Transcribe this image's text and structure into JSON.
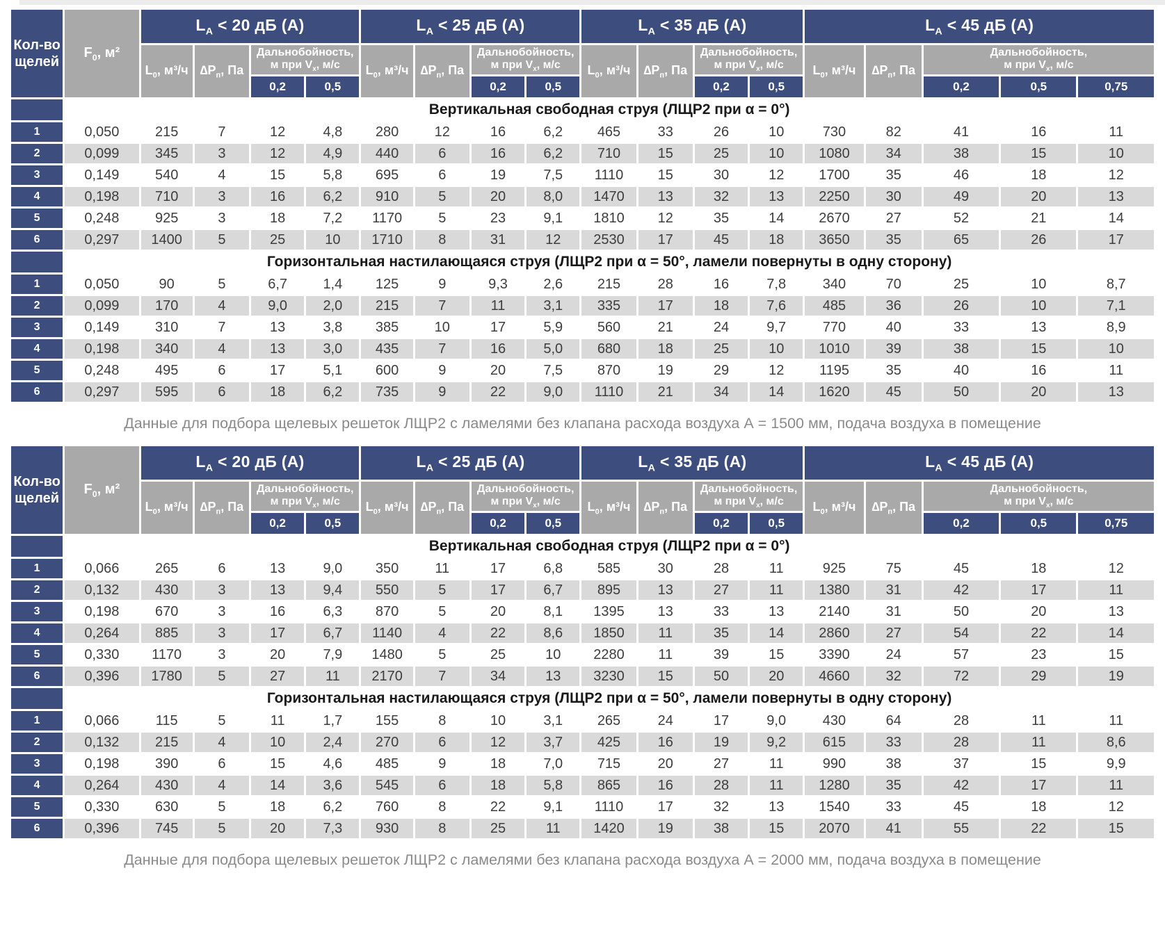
{
  "header": {
    "slots_label": "Кол-во щелей",
    "f0": {
      "pre": "F",
      "sub": "0",
      "post": ", м²"
    },
    "flow": {
      "pre": "L",
      "sub": "0",
      "post": ", м³/ч"
    },
    "pressure": {
      "pre": "∆P",
      "sub": "п",
      "post": ", Па"
    },
    "range_line1": "Дальнобойность,",
    "range_line2": {
      "pre": "м при V",
      "sub": "х",
      "post": ", м/с"
    },
    "groups": [
      {
        "title": {
          "pre": "L",
          "sub": "A",
          "post": " < 20 дБ (А)"
        },
        "velocities": [
          "0,2",
          "0,5"
        ]
      },
      {
        "title": {
          "pre": "L",
          "sub": "A",
          "post": " < 25 дБ (А)"
        },
        "velocities": [
          "0,2",
          "0,5"
        ]
      },
      {
        "title": {
          "pre": "L",
          "sub": "A",
          "post": " < 35 дБ (А)"
        },
        "velocities": [
          "0,2",
          "0,5"
        ]
      },
      {
        "title": {
          "pre": "L",
          "sub": "A",
          "post": " < 45 дБ (А)"
        },
        "velocities": [
          "0,2",
          "0,5",
          "0,75"
        ]
      }
    ]
  },
  "tables": [
    {
      "caption": "Данные для подбора щелевых решеток ЛЩР2 с ламелями без клапана расхода воздуха А = 1500 мм, подача воздуха в помещение",
      "sections": [
        {
          "title": "Вертикальная свободная струя (ЛЩР2 при α = 0°)",
          "rows": [
            {
              "n": "1",
              "f": "0,050",
              "values": [
                "215",
                "7",
                "12",
                "4,8",
                "280",
                "12",
                "16",
                "6,2",
                "465",
                "33",
                "26",
                "10",
                "730",
                "82",
                "41",
                "16",
                "11"
              ]
            },
            {
              "n": "2",
              "f": "0,099",
              "values": [
                "345",
                "3",
                "12",
                "4,9",
                "440",
                "6",
                "16",
                "6,2",
                "710",
                "15",
                "25",
                "10",
                "1080",
                "34",
                "38",
                "15",
                "10"
              ]
            },
            {
              "n": "3",
              "f": "0,149",
              "values": [
                "540",
                "4",
                "15",
                "5,8",
                "695",
                "6",
                "19",
                "7,5",
                "1110",
                "15",
                "30",
                "12",
                "1700",
                "35",
                "46",
                "18",
                "12"
              ]
            },
            {
              "n": "4",
              "f": "0,198",
              "values": [
                "710",
                "3",
                "16",
                "6,2",
                "910",
                "5",
                "20",
                "8,0",
                "1470",
                "13",
                "32",
                "13",
                "2250",
                "30",
                "49",
                "20",
                "13"
              ]
            },
            {
              "n": "5",
              "f": "0,248",
              "values": [
                "925",
                "3",
                "18",
                "7,2",
                "1170",
                "5",
                "23",
                "9,1",
                "1810",
                "12",
                "35",
                "14",
                "2670",
                "27",
                "52",
                "21",
                "14"
              ]
            },
            {
              "n": "6",
              "f": "0,297",
              "values": [
                "1400",
                "5",
                "25",
                "10",
                "1710",
                "8",
                "31",
                "12",
                "2530",
                "17",
                "45",
                "18",
                "3650",
                "35",
                "65",
                "26",
                "17"
              ]
            }
          ]
        },
        {
          "title": "Горизонтальная настилающаяся струя (ЛЩР2 при α = 50°, ламели повернуты в одну сторону)",
          "rows": [
            {
              "n": "1",
              "f": "0,050",
              "values": [
                "90",
                "5",
                "6,7",
                "1,4",
                "125",
                "9",
                "9,3",
                "2,6",
                "215",
                "28",
                "16",
                "7,8",
                "340",
                "70",
                "25",
                "10",
                "8,7"
              ]
            },
            {
              "n": "2",
              "f": "0,099",
              "values": [
                "170",
                "4",
                "9,0",
                "2,0",
                "215",
                "7",
                "11",
                "3,1",
                "335",
                "17",
                "18",
                "7,6",
                "485",
                "36",
                "26",
                "10",
                "7,1"
              ]
            },
            {
              "n": "3",
              "f": "0,149",
              "values": [
                "310",
                "7",
                "13",
                "3,8",
                "385",
                "10",
                "17",
                "5,9",
                "560",
                "21",
                "24",
                "9,7",
                "770",
                "40",
                "33",
                "13",
                "8,9"
              ]
            },
            {
              "n": "4",
              "f": "0,198",
              "values": [
                "340",
                "4",
                "13",
                "3,0",
                "435",
                "7",
                "16",
                "5,0",
                "680",
                "18",
                "25",
                "10",
                "1010",
                "39",
                "38",
                "15",
                "10"
              ]
            },
            {
              "n": "5",
              "f": "0,248",
              "values": [
                "495",
                "6",
                "17",
                "5,1",
                "600",
                "9",
                "20",
                "7,5",
                "870",
                "19",
                "29",
                "12",
                "1195",
                "35",
                "40",
                "16",
                "11"
              ]
            },
            {
              "n": "6",
              "f": "0,297",
              "values": [
                "595",
                "6",
                "18",
                "6,2",
                "735",
                "9",
                "22",
                "9,0",
                "1110",
                "21",
                "34",
                "14",
                "1620",
                "45",
                "50",
                "20",
                "13"
              ]
            }
          ]
        }
      ]
    },
    {
      "caption": "Данные для подбора щелевых решеток ЛЩР2 с ламелями без клапана расхода воздуха А = 2000 мм, подача воздуха в помещение",
      "sections": [
        {
          "title": "Вертикальная свободная струя (ЛЩР2 при α = 0°)",
          "rows": [
            {
              "n": "1",
              "f": "0,066",
              "values": [
                "265",
                "6",
                "13",
                "9,0",
                "350",
                "11",
                "17",
                "6,8",
                "585",
                "30",
                "28",
                "11",
                "925",
                "75",
                "45",
                "18",
                "12"
              ]
            },
            {
              "n": "2",
              "f": "0,132",
              "values": [
                "430",
                "3",
                "13",
                "9,4",
                "550",
                "5",
                "17",
                "6,7",
                "895",
                "13",
                "27",
                "11",
                "1380",
                "31",
                "42",
                "17",
                "11"
              ]
            },
            {
              "n": "3",
              "f": "0,198",
              "values": [
                "670",
                "3",
                "16",
                "6,3",
                "870",
                "5",
                "20",
                "8,1",
                "1395",
                "13",
                "33",
                "13",
                "2140",
                "31",
                "50",
                "20",
                "13"
              ]
            },
            {
              "n": "4",
              "f": "0,264",
              "values": [
                "885",
                "3",
                "17",
                "6,7",
                "1140",
                "4",
                "22",
                "8,6",
                "1850",
                "11",
                "35",
                "14",
                "2860",
                "27",
                "54",
                "22",
                "14"
              ]
            },
            {
              "n": "5",
              "f": "0,330",
              "values": [
                "1170",
                "3",
                "20",
                "7,9",
                "1480",
                "5",
                "25",
                "10",
                "2280",
                "11",
                "39",
                "15",
                "3390",
                "24",
                "57",
                "23",
                "15"
              ]
            },
            {
              "n": "6",
              "f": "0,396",
              "values": [
                "1780",
                "5",
                "27",
                "11",
                "2170",
                "7",
                "34",
                "13",
                "3230",
                "15",
                "50",
                "20",
                "4660",
                "32",
                "72",
                "29",
                "19"
              ]
            }
          ]
        },
        {
          "title": "Горизонтальная настилающаяся струя (ЛЩР2 при α = 50°, ламели повернуты в одну сторону)",
          "rows": [
            {
              "n": "1",
              "f": "0,066",
              "values": [
                "115",
                "5",
                "11",
                "1,7",
                "155",
                "8",
                "10",
                "3,1",
                "265",
                "24",
                "17",
                "9,0",
                "430",
                "64",
                "28",
                "11",
                "11"
              ]
            },
            {
              "n": "2",
              "f": "0,132",
              "values": [
                "215",
                "4",
                "10",
                "2,4",
                "270",
                "6",
                "12",
                "3,7",
                "425",
                "16",
                "19",
                "9,2",
                "615",
                "33",
                "28",
                "11",
                "8,6"
              ]
            },
            {
              "n": "3",
              "f": "0,198",
              "values": [
                "390",
                "6",
                "15",
                "4,6",
                "485",
                "9",
                "18",
                "7,0",
                "715",
                "20",
                "27",
                "11",
                "990",
                "38",
                "37",
                "15",
                "9,9"
              ]
            },
            {
              "n": "4",
              "f": "0,264",
              "values": [
                "430",
                "4",
                "14",
                "3,6",
                "545",
                "6",
                "18",
                "5,8",
                "865",
                "16",
                "28",
                "11",
                "1280",
                "35",
                "42",
                "17",
                "11"
              ]
            },
            {
              "n": "5",
              "f": "0,330",
              "values": [
                "630",
                "5",
                "18",
                "6,2",
                "760",
                "8",
                "22",
                "9,1",
                "1110",
                "17",
                "32",
                "13",
                "1540",
                "33",
                "45",
                "18",
                "12"
              ]
            },
            {
              "n": "6",
              "f": "0,396",
              "values": [
                "745",
                "5",
                "20",
                "7,3",
                "930",
                "8",
                "25",
                "11",
                "1420",
                "19",
                "38",
                "15",
                "2070",
                "41",
                "55",
                "22",
                "15"
              ]
            }
          ]
        }
      ]
    }
  ],
  "colors": {
    "header_navy": "#3C4D7E",
    "header_gray": "#A9A9A9",
    "row_stripe": "#d9d9d9",
    "caption_text": "#8a8a8a"
  }
}
